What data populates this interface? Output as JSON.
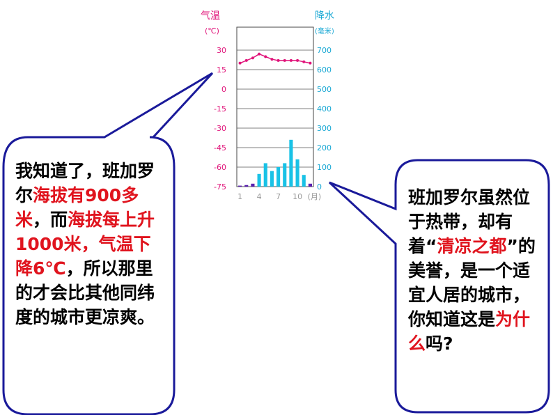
{
  "chart_data": {
    "type": "bar+line",
    "title_left": "气温",
    "unit_left": "(℃)",
    "title_right": "降水量",
    "unit_right": "(毫米)",
    "y_left_ticks": [
      "30",
      "15",
      "0",
      "-15",
      "-30",
      "-45",
      "-60",
      "-75"
    ],
    "y_left_range": [
      -75,
      30
    ],
    "y_right_ticks": [
      "700",
      "600",
      "500",
      "400",
      "300",
      "200",
      "100",
      "0"
    ],
    "y_right_range": [
      0,
      700
    ],
    "x_ticks": [
      "1",
      "4",
      "7",
      "10",
      "(月)"
    ],
    "months": [
      1,
      2,
      3,
      4,
      5,
      6,
      7,
      8,
      9,
      10,
      11,
      12
    ],
    "temperature": [
      20,
      22,
      24,
      27,
      25,
      23,
      22,
      22,
      22,
      22,
      21,
      20
    ],
    "precipitation": [
      5,
      8,
      15,
      65,
      120,
      80,
      100,
      120,
      240,
      140,
      60,
      15
    ],
    "temp_color": "#e0147a",
    "precip_color_dry": "#5a1fb0",
    "precip_color_wet": "#19c2e6",
    "grid": true
  },
  "left_bubble": {
    "segments": [
      {
        "text": "我知道了，班加罗尔",
        "red": false
      },
      {
        "text": "海拔有900多米",
        "red": true
      },
      {
        "text": "，而",
        "red": false
      },
      {
        "text": "海拔每上升1000米，气温下降6℃",
        "red": true
      },
      {
        "text": "，所以那里的才会比其他同纬度的城市更凉爽。",
        "red": false
      }
    ]
  },
  "right_bubble": {
    "segments": [
      {
        "text": "班加罗尔虽然位于热带，却有着“",
        "red": false
      },
      {
        "text": "清凉之都",
        "red": true
      },
      {
        "text": "”的美誉，是一个适宜人居的城市，你知道这是",
        "red": false
      },
      {
        "text": "为什么",
        "red": true
      },
      {
        "text": "吗?",
        "red": false
      }
    ]
  }
}
